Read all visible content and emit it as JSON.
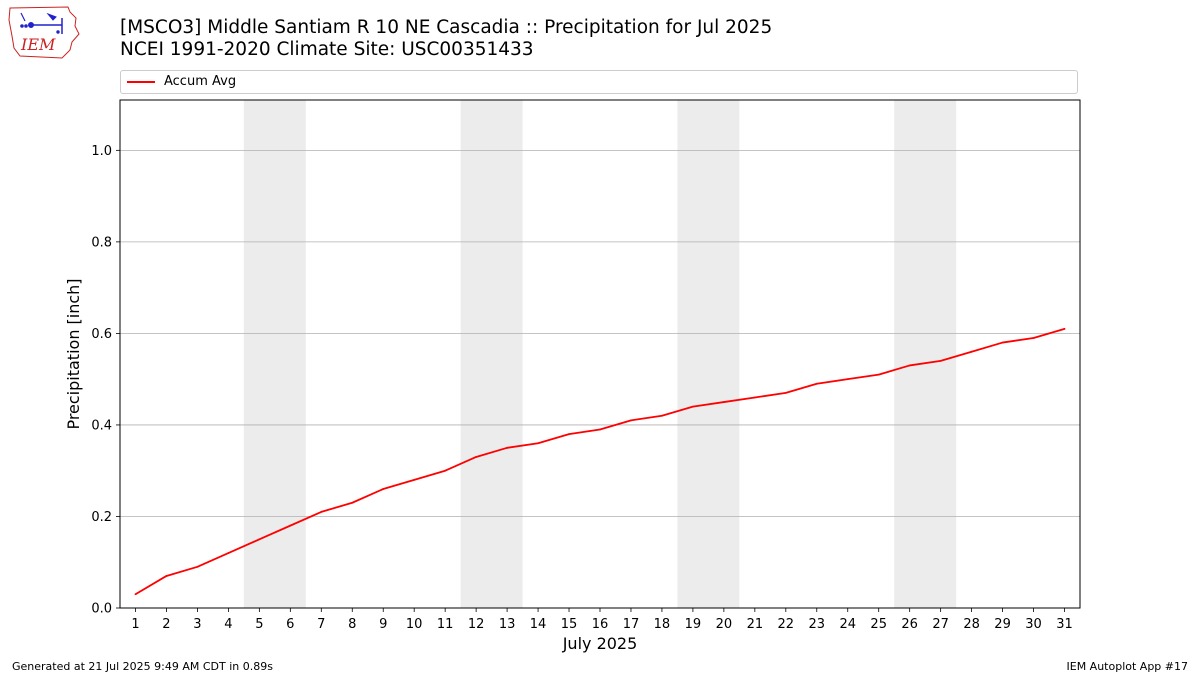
{
  "header": {
    "title_line1": "[MSCO3] Middle Santiam R 10 NE Cascadia :: Precipitation for Jul 2025",
    "title_line2": "NCEI 1991-2020 Climate Site: USC00351433",
    "logo_text": "IEM"
  },
  "footer": {
    "generated": "Generated at 21 Jul 2025 9:49 AM CDT in 0.89s",
    "app": "IEM Autoplot App #17"
  },
  "colors": {
    "line": "#ff0000",
    "weekend_band": "#ececec",
    "grid": "#b0b0b0",
    "logo_blue": "#2222cc",
    "logo_red": "#cc2222"
  },
  "chart_data": {
    "type": "line",
    "xlabel": "July 2025",
    "ylabel": "Precipitation [inch]",
    "xlim": [
      0.5,
      31.5
    ],
    "ylim": [
      0,
      1.11
    ],
    "yticks": [
      0.0,
      0.2,
      0.4,
      0.6,
      0.8,
      1.0
    ],
    "ytick_labels": [
      "0.0",
      "0.2",
      "0.4",
      "0.6",
      "0.8",
      "1.0"
    ],
    "categories": [
      "1",
      "2",
      "3",
      "4",
      "5",
      "6",
      "7",
      "8",
      "9",
      "10",
      "11",
      "12",
      "13",
      "14",
      "15",
      "16",
      "17",
      "18",
      "19",
      "20",
      "21",
      "22",
      "23",
      "24",
      "25",
      "26",
      "27",
      "28",
      "29",
      "30",
      "31"
    ],
    "grid": "horizontal",
    "legend_position": "top",
    "shaded_day_ranges": [
      [
        5,
        6
      ],
      [
        12,
        13
      ],
      [
        19,
        20
      ],
      [
        26,
        27
      ]
    ],
    "series": [
      {
        "name": "Accum Avg",
        "values": [
          0.03,
          0.07,
          0.09,
          0.12,
          0.15,
          0.18,
          0.21,
          0.23,
          0.26,
          0.28,
          0.3,
          0.33,
          0.35,
          0.36,
          0.38,
          0.39,
          0.41,
          0.42,
          0.44,
          0.45,
          0.46,
          0.47,
          0.49,
          0.5,
          0.51,
          0.53,
          0.54,
          0.56,
          0.58,
          0.59,
          0.61
        ]
      }
    ]
  }
}
